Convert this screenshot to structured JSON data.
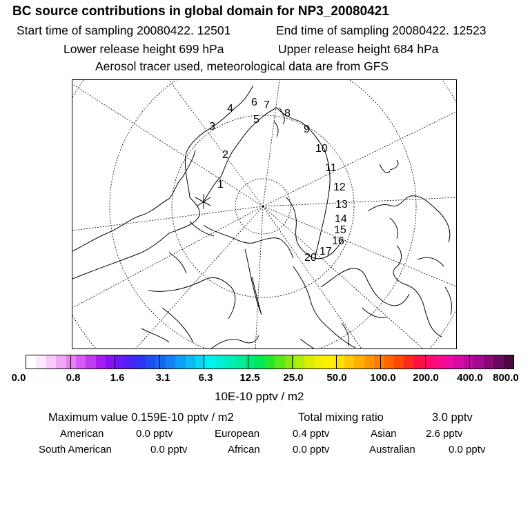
{
  "title": "BC  source contributions in global domain for NP3_20080421",
  "sampling": {
    "start": "Start time of sampling 20080422. 12501",
    "end": "End time of sampling 20080422. 12523"
  },
  "release": {
    "lower": "Lower release height  699 hPa",
    "upper": "Upper release height  684 hPa"
  },
  "tracer_note": "Aerosol tracer used, meteorological data are from GFS",
  "trajectory_labels": [
    "1",
    "2",
    "3",
    "4",
    "5",
    "6",
    "7",
    "8",
    "9",
    "10",
    "11",
    "12",
    "13",
    "14",
    "15",
    "16",
    "17",
    "20"
  ],
  "colorbar": {
    "labels": [
      "0.0",
      "0.8",
      "1.6",
      "3.1",
      "6.3",
      "12.5",
      "25.0",
      "50.0",
      "100.0",
      "200.0",
      "400.0",
      "800.0"
    ],
    "colors": [
      "#ffffff",
      "#fde8fd",
      "#f9c9f9",
      "#f3a8f5",
      "#ea80f0",
      "#d45cf0",
      "#c03af0",
      "#a41cf2",
      "#8a10f5",
      "#6a18f5",
      "#4a22f5",
      "#2e34f2",
      "#1f4ef0",
      "#1668f2",
      "#1282f4",
      "#0f9ef6",
      "#0cbaf5",
      "#08d6f2",
      "#00f2f2",
      "#00f0d6",
      "#00eeb8",
      "#00ec9a",
      "#00ea78",
      "#00e858",
      "#22e830",
      "#5ae81c",
      "#8aea10",
      "#b2ec0a",
      "#d6ee06",
      "#f2f000",
      "#fff000",
      "#ffde00",
      "#ffc800",
      "#ffb000",
      "#ff9800",
      "#ff7e00",
      "#ff6400",
      "#ff4800",
      "#ff2a1a",
      "#ff1040",
      "#ff0a66",
      "#ff0a86",
      "#f00ca0",
      "#d80aa8",
      "#c008a0",
      "#a40890",
      "#880878",
      "#6a0860",
      "#4c0640"
    ]
  },
  "units": "10E-10 pptv / m2",
  "stats": {
    "max_label": "Maximum value  0.159E-10 pptv / m2",
    "total_label": "Total mixing ratio",
    "total_value": "3.0 pptv"
  },
  "regions": [
    {
      "name": "American",
      "value": "0.0 pptv"
    },
    {
      "name": "European",
      "value": "0.4 pptv"
    },
    {
      "name": "Asian",
      "value": "2.6 pptv"
    },
    {
      "name": "South American",
      "value": "0.0 pptv"
    },
    {
      "name": "African",
      "value": "0.0 pptv"
    },
    {
      "name": "Australian",
      "value": "0.0 pptv"
    }
  ]
}
